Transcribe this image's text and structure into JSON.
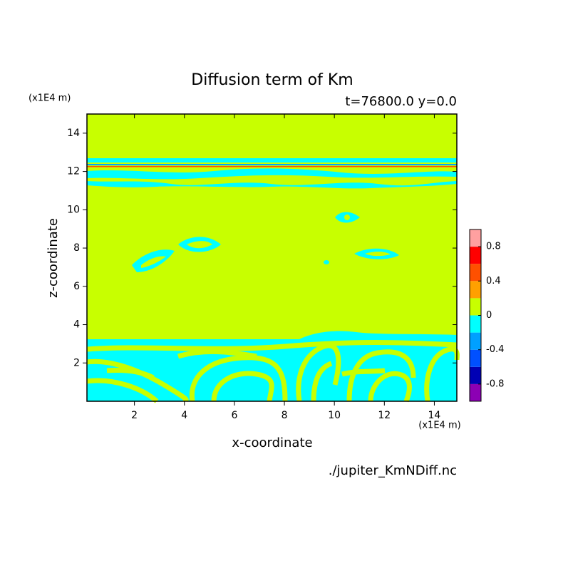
{
  "chart_data": {
    "type": "contour",
    "title": "Diffusion term of Km",
    "subtitle": "t=76800.0 y=0.0",
    "x_label": "x-coordinate",
    "y_label": "z-coordinate",
    "x_unit": "(x1E4 m)",
    "y_unit": "(x1E4 m)",
    "source": "./jupiter_KmNDiff.nc",
    "xlim": [
      0.1,
      14.9
    ],
    "ylim": [
      0,
      15
    ],
    "xticks": [
      2,
      4,
      6,
      8,
      10,
      12,
      14
    ],
    "yticks": [
      2,
      4,
      6,
      8,
      10,
      12,
      14
    ],
    "levels": [
      -1,
      -0.8,
      -0.6,
      -0.4,
      -0.2,
      0,
      0.2,
      0.4,
      0.6,
      0.8,
      1
    ],
    "colors": [
      "#8c00b4",
      "#0000b4",
      "#0050ff",
      "#00a0ff",
      "#00ffff",
      "#c8ff00",
      "#ffa000",
      "#ff5000",
      "#ff0000",
      "#ffa0a0"
    ],
    "colorbar_ticks": [
      -0.8,
      -0.4,
      0,
      0.4,
      0.8
    ]
  }
}
